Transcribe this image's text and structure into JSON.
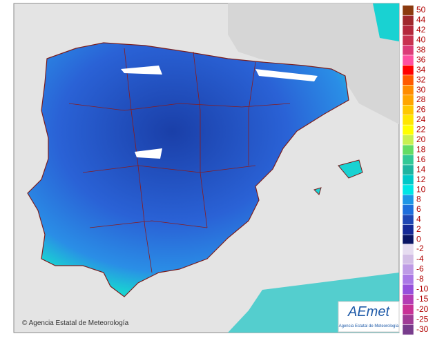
{
  "map": {
    "copyright": "© Agencia Estatal de Meteorología",
    "logo": {
      "brand": "AEmet",
      "subtitle": "Agencia Estatal de Meteorología"
    },
    "legend": {
      "positive": [
        {
          "label": 50,
          "color": "#8b3a0f"
        },
        {
          "label": 44,
          "color": "#a0282d"
        },
        {
          "label": 42,
          "color": "#b4283c"
        },
        {
          "label": 40,
          "color": "#c83250"
        },
        {
          "label": 38,
          "color": "#dc3c78"
        },
        {
          "label": 36,
          "color": "#ff50a0"
        },
        {
          "label": 34,
          "color": "#ff0000"
        },
        {
          "label": 32,
          "color": "#ff5a00"
        },
        {
          "label": 30,
          "color": "#ff8c00"
        },
        {
          "label": 28,
          "color": "#ffa500"
        },
        {
          "label": 26,
          "color": "#ffc800"
        },
        {
          "label": 24,
          "color": "#ffe600"
        },
        {
          "label": 22,
          "color": "#ffff00"
        },
        {
          "label": 20,
          "color": "#c8f050"
        },
        {
          "label": 18,
          "color": "#64dc64"
        },
        {
          "label": 16,
          "color": "#32c896"
        },
        {
          "label": 14,
          "color": "#1eb4a0"
        },
        {
          "label": 12,
          "color": "#00c8c8"
        },
        {
          "label": 10,
          "color": "#00e6e6"
        },
        {
          "label": 8,
          "color": "#1e96e6"
        },
        {
          "label": 6,
          "color": "#1e6edc"
        },
        {
          "label": 4,
          "color": "#1e46b4"
        },
        {
          "label": 2,
          "color": "#142896"
        },
        {
          "label": 0,
          "color": "#0a1464"
        }
      ],
      "negative": [
        {
          "label": -2,
          "color": "#e6dcf0"
        },
        {
          "label": -4,
          "color": "#d2bee6"
        },
        {
          "label": -6,
          "color": "#be9be6"
        },
        {
          "label": -8,
          "color": "#aa78e6"
        },
        {
          "label": -10,
          "color": "#9650dc"
        },
        {
          "label": -15,
          "color": "#b43cb4"
        },
        {
          "label": -20,
          "color": "#c83296"
        },
        {
          "label": -25,
          "color": "#a03c96"
        },
        {
          "label": -30,
          "color": "#783c8c"
        }
      ]
    }
  }
}
